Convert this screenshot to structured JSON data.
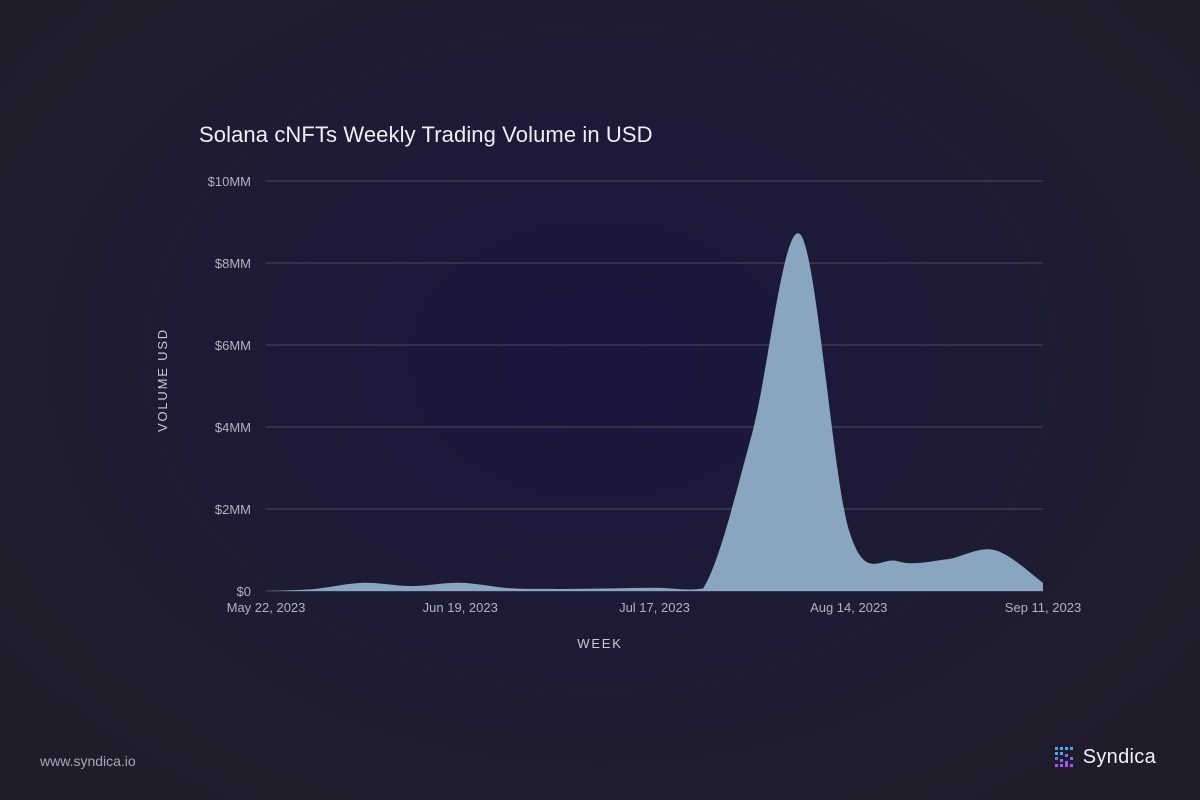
{
  "chart_data": {
    "type": "area",
    "title": "Solana cNFTs Weekly Trading Volume in USD",
    "xlabel": "WEEK",
    "ylabel": "VOLUME USD",
    "x": [
      "May 22, 2023",
      "May 29, 2023",
      "Jun 5, 2023",
      "Jun 12, 2023",
      "Jun 19, 2023",
      "Jun 26, 2023",
      "Jul 3, 2023",
      "Jul 10, 2023",
      "Jul 17, 2023",
      "Jul 24, 2023",
      "Jul 31, 2023",
      "Aug 7, 2023",
      "Aug 14, 2023",
      "Aug 21, 2023",
      "Aug 28, 2023",
      "Sep 4, 2023",
      "Sep 11, 2023"
    ],
    "series": [
      {
        "values": [
          0,
          50000,
          200000,
          120000,
          200000,
          70000,
          50000,
          60000,
          80000,
          60000,
          3800000,
          8700000,
          1500000,
          730000,
          770000,
          1000000,
          200000
        ]
      }
    ],
    "x_tick_labels": [
      "May 22, 2023",
      "Jun 19, 2023",
      "Jul 17, 2023",
      "Aug 14, 2023",
      "Sep 11, 2023"
    ],
    "y_tick_labels": [
      "$0",
      "$2MM",
      "$4MM",
      "$6MM",
      "$8MM",
      "$10MM"
    ],
    "y_ticks": [
      0,
      2000000,
      4000000,
      6000000,
      8000000,
      10000000
    ],
    "ylim": [
      0,
      10000000
    ],
    "grid": true,
    "fill_color": "#8aa5bf",
    "grid_color": "#4c4a60"
  },
  "footer": {
    "url": "www.syndica.io"
  },
  "brand": {
    "name": "Syndica"
  }
}
